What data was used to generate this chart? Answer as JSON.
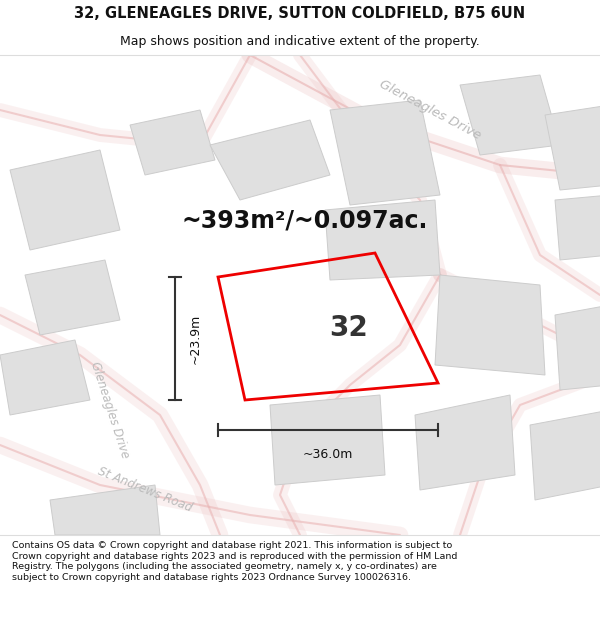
{
  "title": "32, GLENEAGLES DRIVE, SUTTON COLDFIELD, B75 6UN",
  "subtitle": "Map shows position and indicative extent of the property.",
  "area_text": "~393m²/~0.097ac.",
  "dim_width": "~36.0m",
  "dim_height": "~23.9m",
  "number_label": "32",
  "footer": "Contains OS data © Crown copyright and database right 2021. This information is subject to Crown copyright and database rights 2023 and is reproduced with the permission of HM Land Registry. The polygons (including the associated geometry, namely x, y co-ordinates) are subject to Crown copyright and database rights 2023 Ordnance Survey 100026316.",
  "map_bg": "#f7f7f7",
  "road_color": "#e8b0b0",
  "building_fill": "#e0e0e0",
  "building_edge": "#cccccc",
  "property_color": "#ee0000",
  "street_label_color": "#bbbbbb",
  "title_fontsize": 10.5,
  "subtitle_fontsize": 9,
  "area_fontsize": 17,
  "number_fontsize": 20,
  "dim_fontsize": 9,
  "footer_fontsize": 6.8,
  "header_bg": "#ffffff",
  "footer_bg": "#ffffff",
  "divider_color": "#dddddd"
}
